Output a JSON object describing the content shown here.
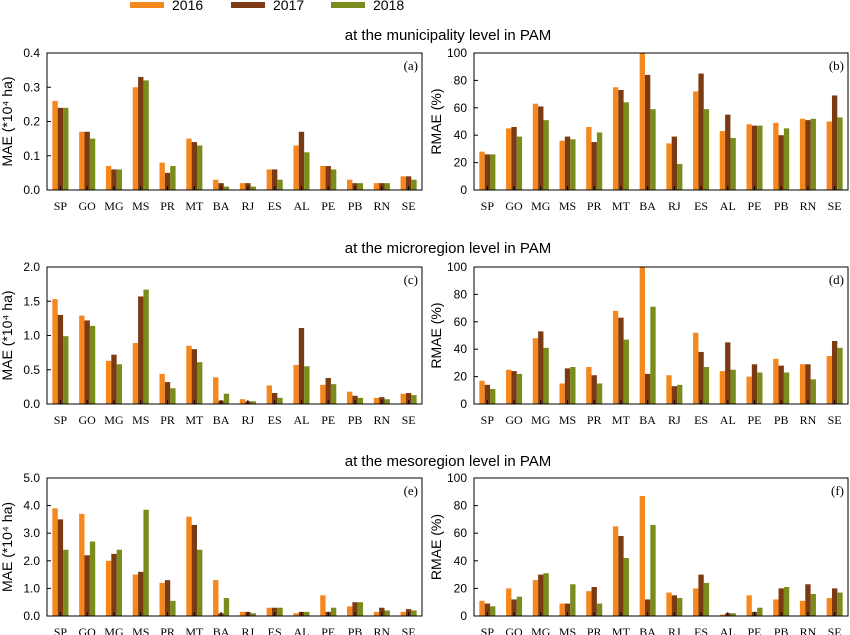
{
  "legend": [
    {
      "name": "2016",
      "color": "#F5871F"
    },
    {
      "name": "2017",
      "color": "#7B3A12"
    },
    {
      "name": "2018",
      "color": "#7A8C1C"
    }
  ],
  "section_titles": [
    "at the municipality level in PAM",
    "at the microregion level in PAM",
    "at the mesoregion level in PAM"
  ],
  "chart_data": [
    {
      "type": "bar",
      "panel_label": "(a)",
      "ylabel": "MAE (*10⁴ ha)",
      "categories": [
        "SP",
        "GO",
        "MG",
        "MS",
        "PR",
        "MT",
        "BA",
        "RJ",
        "ES",
        "AL",
        "PE",
        "PB",
        "RN",
        "SE"
      ],
      "ylim": [
        0,
        0.4
      ],
      "yticks": [
        "0.0",
        "0.1",
        "0.2",
        "0.3",
        "0.4"
      ],
      "series": [
        {
          "name": "2016",
          "values": [
            0.26,
            0.17,
            0.07,
            0.3,
            0.08,
            0.15,
            0.03,
            0.02,
            0.06,
            0.13,
            0.07,
            0.03,
            0.02,
            0.04
          ]
        },
        {
          "name": "2017",
          "values": [
            0.24,
            0.17,
            0.06,
            0.33,
            0.05,
            0.14,
            0.02,
            0.02,
            0.06,
            0.17,
            0.07,
            0.02,
            0.02,
            0.04
          ]
        },
        {
          "name": "2018",
          "values": [
            0.24,
            0.15,
            0.06,
            0.32,
            0.07,
            0.13,
            0.01,
            0.01,
            0.03,
            0.11,
            0.06,
            0.02,
            0.02,
            0.03
          ]
        }
      ]
    },
    {
      "type": "bar",
      "panel_label": "(b)",
      "ylabel": "RMAE (%)",
      "categories": [
        "SP",
        "GO",
        "MG",
        "MS",
        "PR",
        "MT",
        "BA",
        "RJ",
        "ES",
        "AL",
        "PE",
        "PB",
        "RN",
        "SE"
      ],
      "ylim": [
        0,
        100
      ],
      "yticks": [
        "0",
        "20",
        "40",
        "60",
        "80",
        "100"
      ],
      "series": [
        {
          "name": "2016",
          "values": [
            28,
            45,
            63,
            36,
            46,
            75,
            100,
            34,
            72,
            43,
            48,
            49,
            52,
            50
          ]
        },
        {
          "name": "2017",
          "values": [
            26,
            46,
            61,
            39,
            35,
            73,
            84,
            39,
            85,
            55,
            47,
            40,
            51,
            69
          ]
        },
        {
          "name": "2018",
          "values": [
            26,
            39,
            51,
            37,
            42,
            64,
            59,
            19,
            59,
            38,
            47,
            45,
            52,
            53
          ]
        }
      ]
    },
    {
      "type": "bar",
      "panel_label": "(c)",
      "ylabel": "MAE (*10⁴ ha)",
      "categories": [
        "SP",
        "GO",
        "MG",
        "MS",
        "PR",
        "MT",
        "BA",
        "RJ",
        "ES",
        "AL",
        "PE",
        "PB",
        "RN",
        "SE"
      ],
      "ylim": [
        0,
        2.0
      ],
      "yticks": [
        "0.0",
        "0.5",
        "1.0",
        "1.5",
        "2.0"
      ],
      "series": [
        {
          "name": "2016",
          "values": [
            1.53,
            1.29,
            0.63,
            0.89,
            0.44,
            0.85,
            0.39,
            0.07,
            0.27,
            0.57,
            0.28,
            0.18,
            0.09,
            0.15
          ]
        },
        {
          "name": "2017",
          "values": [
            1.3,
            1.22,
            0.72,
            1.57,
            0.32,
            0.8,
            0.05,
            0.04,
            0.16,
            1.11,
            0.38,
            0.12,
            0.1,
            0.16
          ]
        },
        {
          "name": "2018",
          "values": [
            0.99,
            1.14,
            0.58,
            1.67,
            0.23,
            0.61,
            0.15,
            0.04,
            0.09,
            0.55,
            0.29,
            0.09,
            0.07,
            0.13
          ]
        }
      ]
    },
    {
      "type": "bar",
      "panel_label": "(d)",
      "ylabel": "RMAE (%)",
      "categories": [
        "SP",
        "GO",
        "MG",
        "MS",
        "PR",
        "MT",
        "BA",
        "RJ",
        "ES",
        "AL",
        "PE",
        "PB",
        "RN",
        "SE"
      ],
      "ylim": [
        0,
        100
      ],
      "yticks": [
        "0",
        "20",
        "40",
        "60",
        "80",
        "100"
      ],
      "series": [
        {
          "name": "2016",
          "values": [
            17,
            25,
            48,
            15,
            27,
            68,
            100,
            21,
            52,
            24,
            20,
            33,
            29,
            35
          ]
        },
        {
          "name": "2017",
          "values": [
            14,
            24,
            53,
            26,
            21,
            63,
            22,
            13,
            38,
            45,
            29,
            28,
            29,
            46
          ]
        },
        {
          "name": "2018",
          "values": [
            11,
            22,
            41,
            27,
            15,
            47,
            71,
            14,
            27,
            25,
            23,
            23,
            18,
            41
          ]
        }
      ]
    },
    {
      "type": "bar",
      "panel_label": "(e)",
      "ylabel": "MAE (*10⁴ ha)",
      "categories": [
        "SP",
        "GO",
        "MG",
        "MS",
        "PR",
        "MT",
        "BA",
        "RJ",
        "ES",
        "AL",
        "PE",
        "PB",
        "RN",
        "SE"
      ],
      "ylim": [
        0,
        5.0
      ],
      "yticks": [
        "0.0",
        "1.0",
        "2.0",
        "3.0",
        "4.0",
        "5.0"
      ],
      "series": [
        {
          "name": "2016",
          "values": [
            3.9,
            3.7,
            2.0,
            1.5,
            1.2,
            3.6,
            1.3,
            0.15,
            0.3,
            0.1,
            0.75,
            0.35,
            0.15,
            0.15
          ]
        },
        {
          "name": "2017",
          "values": [
            3.5,
            2.2,
            2.25,
            1.6,
            1.3,
            3.3,
            0.1,
            0.15,
            0.3,
            0.15,
            0.15,
            0.5,
            0.3,
            0.25
          ]
        },
        {
          "name": "2018",
          "values": [
            2.4,
            2.7,
            2.4,
            3.85,
            0.55,
            2.4,
            0.65,
            0.1,
            0.3,
            0.15,
            0.3,
            0.5,
            0.2,
            0.2
          ]
        }
      ]
    },
    {
      "type": "bar",
      "panel_label": "(f)",
      "ylabel": "RMAE (%)",
      "categories": [
        "SP",
        "GO",
        "MG",
        "MS",
        "PR",
        "MT",
        "BA",
        "RJ",
        "ES",
        "AL",
        "PE",
        "PB",
        "RN",
        "SE"
      ],
      "ylim": [
        0,
        100
      ],
      "yticks": [
        "0",
        "20",
        "40",
        "60",
        "80",
        "100"
      ],
      "series": [
        {
          "name": "2016",
          "values": [
            11,
            20,
            26,
            9,
            18,
            65,
            87,
            17,
            20,
            1,
            15,
            12,
            11,
            13
          ]
        },
        {
          "name": "2017",
          "values": [
            9,
            12,
            30,
            9,
            21,
            58,
            12,
            15,
            30,
            2,
            3,
            20,
            23,
            20
          ]
        },
        {
          "name": "2018",
          "values": [
            7,
            14,
            31,
            23,
            9,
            42,
            66,
            13,
            24,
            2,
            6,
            21,
            16,
            17
          ]
        }
      ]
    }
  ]
}
